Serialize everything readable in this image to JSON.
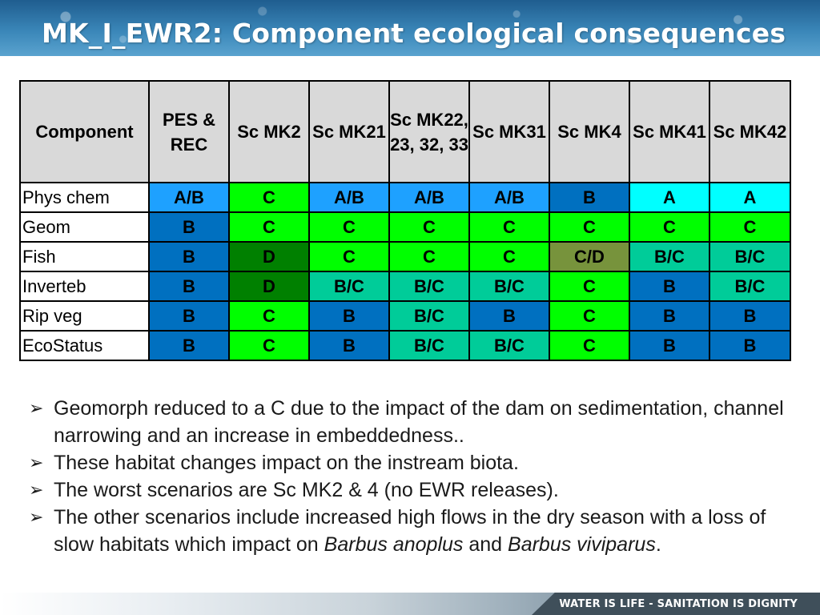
{
  "slide": {
    "title": "MK_I_EWR2:  Component ecological consequences",
    "footer": "WATER IS LIFE - SANITATION IS DIGNITY"
  },
  "table": {
    "headers": [
      "Component",
      "PES & REC",
      "Sc MK2",
      "Sc MK21",
      "Sc MK22, 23, 32, 33",
      "Sc MK31",
      "Sc MK4",
      "Sc MK41",
      "Sc MK42"
    ],
    "rows": [
      {
        "component": "Phys chem",
        "values": [
          "A/B",
          "C",
          "A/B",
          "A/B",
          "A/B",
          "B",
          "A",
          "A"
        ]
      },
      {
        "component": "Geom",
        "values": [
          "B",
          "C",
          "C",
          "C",
          "C",
          "C",
          "C",
          "C"
        ]
      },
      {
        "component": "Fish",
        "values": [
          "B",
          "D",
          "C",
          "C",
          "C",
          "C/D",
          "B/C",
          "B/C"
        ]
      },
      {
        "component": "Inverteb",
        "values": [
          "B",
          "D",
          "B/C",
          "B/C",
          "B/C",
          "C",
          "B",
          "B/C"
        ]
      },
      {
        "component": "Rip veg",
        "values": [
          "B",
          "C",
          "B",
          "B/C",
          "B",
          "C",
          "B",
          "B"
        ]
      },
      {
        "component": "EcoStatus",
        "values": [
          "B",
          "C",
          "B",
          "B/C",
          "B/C",
          "C",
          "B",
          "B"
        ]
      }
    ]
  },
  "category_colors": {
    "A": "#00ffff",
    "A/B": "#1ea1ff",
    "B": "#0070c0",
    "B/C": "#00cc99",
    "C": "#00ff00",
    "C/D": "#77933c",
    "D": "#008000"
  },
  "bullets": [
    {
      "segments": [
        {
          "text": "Geomorph reduced to a C due to the impact of the dam on sedimentation, channel narrowing and an increase in embeddedness..",
          "italic": false
        }
      ]
    },
    {
      "segments": [
        {
          "text": "These habitat changes impact on the instream biota.",
          "italic": false
        }
      ]
    },
    {
      "segments": [
        {
          "text": "The worst scenarios are Sc MK2 & 4 (no EWR releases).",
          "italic": false
        }
      ]
    },
    {
      "segments": [
        {
          "text": " The other scenarios include increased high flows in the dry season with a loss of slow habitats which impact on ",
          "italic": false
        },
        {
          "text": "Barbus anoplus",
          "italic": true
        },
        {
          "text": " and ",
          "italic": false
        },
        {
          "text": "Barbus viviparus",
          "italic": true
        },
        {
          "text": ".",
          "italic": false
        }
      ]
    }
  ],
  "bullet_glyph": "➢"
}
